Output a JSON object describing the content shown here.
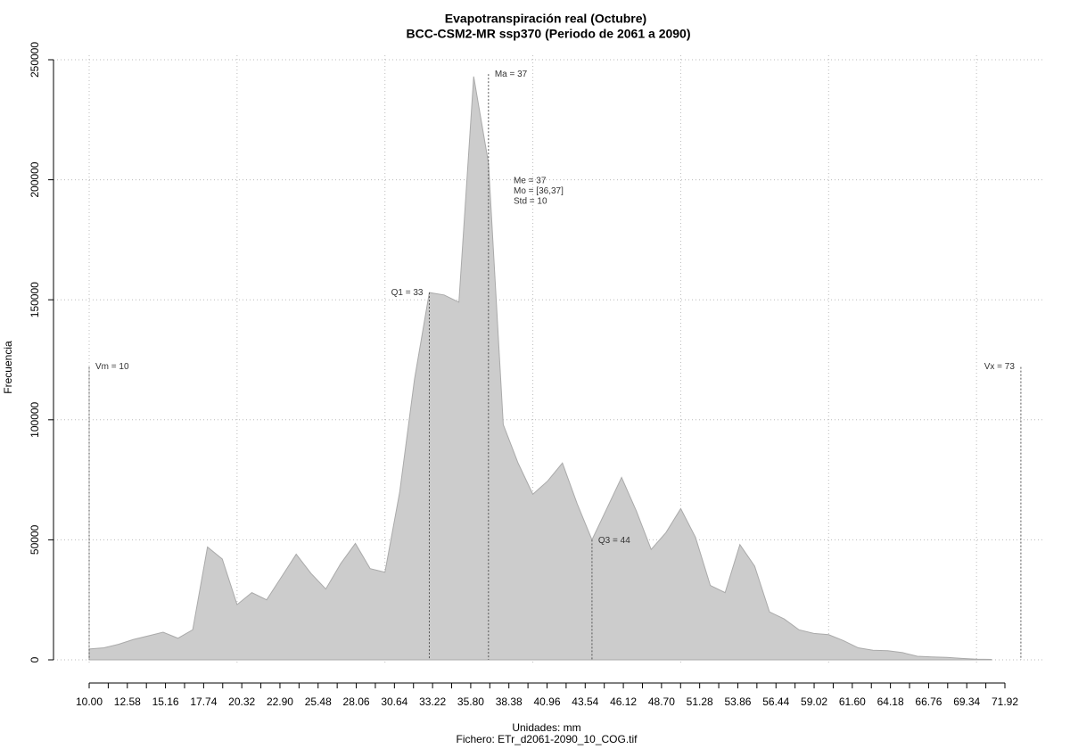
{
  "chart_data": {
    "type": "area",
    "title": "Evapotranspiración real (Octubre)",
    "subtitle": "BCC-CSM2-MR ssp370 (Periodo de 2061 a 2090)",
    "x_label": "Unidades: mm",
    "footnote": "Fichero: ETr_d2061-2090_10_COG.tif",
    "y_label": "Frecuencia",
    "color": "#cccccc",
    "x": [
      10,
      11,
      12,
      13,
      14,
      15,
      16,
      17,
      18,
      19,
      20,
      21,
      22,
      23,
      24,
      25,
      26,
      27,
      28,
      29,
      30,
      31,
      32,
      33,
      34,
      35,
      36,
      37,
      38,
      39,
      40,
      41,
      42,
      43,
      44,
      45,
      46,
      47,
      48,
      49,
      50,
      51,
      52,
      53,
      54,
      55,
      56,
      57,
      58,
      59,
      60,
      61,
      62,
      63,
      64,
      65,
      66,
      67,
      68,
      69,
      70,
      71
    ],
    "values": [
      4500,
      5000,
      6500,
      8500,
      10000,
      11500,
      9000,
      12500,
      47000,
      42000,
      23000,
      28000,
      25000,
      34500,
      44000,
      36000,
      29500,
      40000,
      48500,
      38000,
      36500,
      70000,
      117000,
      153000,
      152000,
      149000,
      243000,
      207000,
      98000,
      82000,
      69000,
      74500,
      82000,
      65000,
      50000,
      63000,
      76000,
      62000,
      46000,
      53000,
      63000,
      51000,
      31000,
      28000,
      48000,
      39000,
      20000,
      17000,
      12500,
      11000,
      10500,
      8000,
      5000,
      4000,
      3800,
      3000,
      1500,
      1200,
      1000,
      600,
      300,
      200
    ],
    "xlim": [
      10,
      71.92
    ],
    "ylim": [
      0,
      250000
    ],
    "yticks": [
      0,
      50000,
      100000,
      150000,
      200000,
      250000
    ],
    "xticks": [
      {
        "value": 10,
        "label": "10.00"
      },
      {
        "value": 12.58,
        "label": "12.58"
      },
      {
        "value": 15.16,
        "label": "15.16"
      },
      {
        "value": 17.74,
        "label": "17.74"
      },
      {
        "value": 20.32,
        "label": "20.32"
      },
      {
        "value": 22.9,
        "label": "22.90"
      },
      {
        "value": 25.48,
        "label": "25.48"
      },
      {
        "value": 28.06,
        "label": "28.06"
      },
      {
        "value": 30.64,
        "label": "30.64"
      },
      {
        "value": 33.22,
        "label": "33.22"
      },
      {
        "value": 35.8,
        "label": "35.80"
      },
      {
        "value": 38.38,
        "label": "38.38"
      },
      {
        "value": 40.96,
        "label": "40.96"
      },
      {
        "value": 43.54,
        "label": "43.54"
      },
      {
        "value": 46.12,
        "label": "46.12"
      },
      {
        "value": 48.7,
        "label": "48.70"
      },
      {
        "value": 51.28,
        "label": "51.28"
      },
      {
        "value": 53.86,
        "label": "53.86"
      },
      {
        "value": 56.44,
        "label": "56.44"
      },
      {
        "value": 59.02,
        "label": "59.02"
      },
      {
        "value": 61.6,
        "label": "61.60"
      },
      {
        "value": 64.18,
        "label": "64.18"
      },
      {
        "value": 66.76,
        "label": "66.76"
      },
      {
        "value": 69.34,
        "label": "69.34"
      },
      {
        "value": 71.92,
        "label": "71.92"
      }
    ],
    "xminor_ticks": [
      11.29,
      13.87,
      16.45,
      19.03,
      21.61,
      24.19,
      26.77,
      29.35,
      31.93,
      34.51,
      37.09,
      39.67,
      42.25,
      44.83,
      47.41,
      49.99,
      52.57,
      55.15,
      57.73,
      60.31,
      62.89,
      65.47,
      68.05,
      70.63
    ],
    "xgrid": [
      10,
      20,
      30,
      40,
      50,
      60,
      70
    ],
    "grid": true,
    "annotations": [
      {
        "label": "Vm = 10",
        "x": 10,
        "y": 122000
      },
      {
        "label": "Q1 = 33",
        "x": 33,
        "y": 153000
      },
      {
        "label": "Ma = 37",
        "x": 37,
        "y": 244000
      },
      {
        "label": "Q3 = 44",
        "x": 44,
        "y": 50000
      },
      {
        "label": "Vx = 73",
        "x": 73,
        "y": 122000
      }
    ],
    "stats_labels": [
      "Me = 37",
      "Mo = [36,37]",
      "Std = 10"
    ]
  }
}
